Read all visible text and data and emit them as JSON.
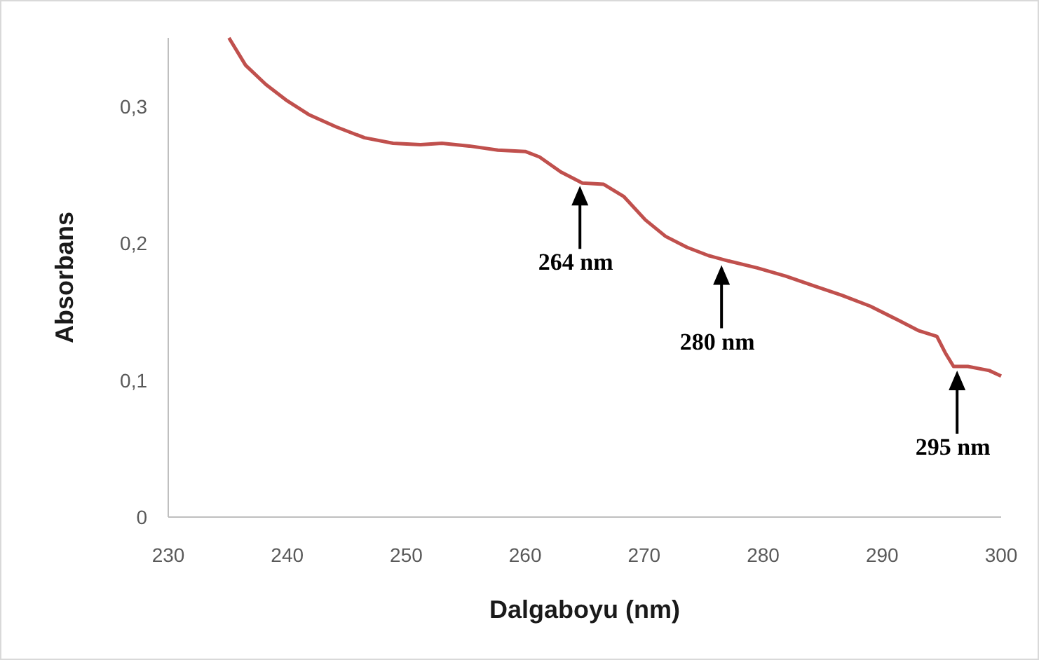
{
  "chart_data": {
    "type": "line",
    "xlabel": "Dalgaboyu (nm)",
    "ylabel": "Absorbans",
    "xlim": [
      230,
      300
    ],
    "xticks": [
      230,
      240,
      250,
      260,
      270,
      280,
      290,
      300
    ],
    "ylim": [
      0,
      0.35
    ],
    "yticks": [
      0,
      {
        "value": 0.1,
        "label": "0,1"
      },
      {
        "value": 0.2,
        "label": "0,2"
      },
      {
        "value": 0.3,
        "label": "0,3"
      }
    ],
    "grid": false,
    "marker": "none",
    "line_style": "solid",
    "series": [
      {
        "color": "#c0504d",
        "x": [
          235.1,
          236.5,
          238.2,
          240.0,
          241.8,
          244.1,
          246.5,
          248.9,
          251.2,
          253.0,
          255.3,
          257.7,
          260.0,
          261.2,
          263.0,
          264.8,
          266.6,
          268.3,
          270.1,
          271.8,
          273.6,
          275.4,
          277.1,
          279.5,
          281.9,
          284.2,
          286.6,
          289.0,
          291.3,
          293.1,
          294.6,
          295.3,
          296.0,
          297.2,
          299.0,
          300.0
        ],
        "values": [
          0.35,
          0.33,
          0.316,
          0.304,
          0.294,
          0.285,
          0.277,
          0.273,
          0.272,
          0.273,
          0.271,
          0.268,
          0.267,
          0.263,
          0.252,
          0.244,
          0.243,
          0.234,
          0.217,
          0.205,
          0.197,
          0.191,
          0.187,
          0.182,
          0.176,
          0.169,
          0.162,
          0.154,
          0.144,
          0.136,
          0.132,
          0.12,
          0.11,
          0.11,
          0.107,
          0.103
        ]
      }
    ],
    "annotations": [
      {
        "text": "264 nm",
        "x": 264.6,
        "y": 0.245
      },
      {
        "text": "280 nm",
        "x": 276.5,
        "y": 0.187
      },
      {
        "text": "295 nm",
        "x": 296.3,
        "y": 0.11
      }
    ]
  }
}
